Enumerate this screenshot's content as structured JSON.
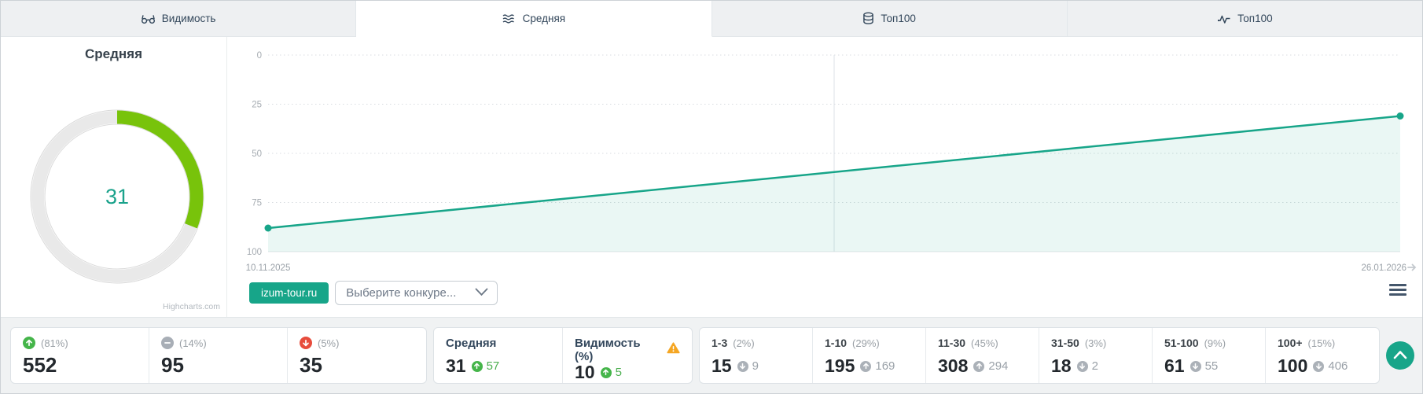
{
  "tabs": [
    {
      "label": "Видимость",
      "icon": "glasses-icon",
      "active": false
    },
    {
      "label": "Средняя",
      "icon": "waves-icon",
      "active": true
    },
    {
      "label": "Топ100",
      "icon": "layers-icon",
      "active": false
    },
    {
      "label": "Топ100",
      "icon": "pulse-icon",
      "active": false
    }
  ],
  "gauge": {
    "title": "Средняя",
    "value": "31",
    "credit": "Highcharts.com"
  },
  "chart_data": [
    {
      "type": "gauge",
      "title": "Средняя",
      "value": 31,
      "max": 100,
      "arc_color": "#78c30b",
      "track_color": "#e9e9e9"
    },
    {
      "type": "area",
      "title": "",
      "x": [
        "10.11.2025",
        "26.01.2026"
      ],
      "series": [
        {
          "name": "izum-tour.ru",
          "values": [
            88,
            31
          ]
        }
      ],
      "ylim": [
        100,
        0
      ],
      "y_axis_reversed": true,
      "yticks": [
        0,
        25,
        50,
        75,
        100
      ],
      "grid": "horizontal-dotted",
      "midline_fraction": 0.5,
      "line_color": "#17a589",
      "xlabel": "",
      "ylabel": "",
      "legend": "none"
    }
  ],
  "controls": {
    "site_button": "izum-tour.ru",
    "competitor_placeholder": "Выберите конкуре...",
    "menu_icon": "hamburger-icon"
  },
  "stats": {
    "summary_cards": [
      {
        "icon": "arrow-up-circle",
        "percent": "(81%)",
        "value": "552"
      },
      {
        "icon": "minus-circle",
        "percent": "(14%)",
        "value": "95"
      },
      {
        "icon": "arrow-down-circle",
        "percent": "(5%)",
        "value": "35"
      }
    ],
    "metric_cards": [
      {
        "label": "Средняя",
        "warning": false,
        "value": "31",
        "delta": "57",
        "delta_dir": "up"
      },
      {
        "label": "Видимость (%)",
        "warning": true,
        "value": "10",
        "delta": "5",
        "delta_dir": "up"
      }
    ],
    "range_cards": [
      {
        "label": "1-3",
        "percent": "(2%)",
        "value": "15",
        "delta": "9",
        "delta_dir": "down"
      },
      {
        "label": "1-10",
        "percent": "(29%)",
        "value": "195",
        "delta": "169",
        "delta_dir": "up"
      },
      {
        "label": "11-30",
        "percent": "(45%)",
        "value": "308",
        "delta": "294",
        "delta_dir": "up"
      },
      {
        "label": "31-50",
        "percent": "(3%)",
        "value": "18",
        "delta": "2",
        "delta_dir": "down"
      },
      {
        "label": "51-100",
        "percent": "(9%)",
        "value": "61",
        "delta": "55",
        "delta_dir": "down"
      },
      {
        "label": "100+",
        "percent": "(15%)",
        "value": "100",
        "delta": "406",
        "delta_dir": "down"
      }
    ]
  },
  "colors": {
    "accent_teal": "#17a589",
    "gauge_arc_green": "#78c30b",
    "gauge_value_teal": "#1aa28b",
    "up_green": "#45b54a",
    "down_red": "#e74c3c",
    "neutral_gray": "#a8aeb6",
    "warning_orange": "#f5a623",
    "delta_green_text": "#4caf50"
  }
}
